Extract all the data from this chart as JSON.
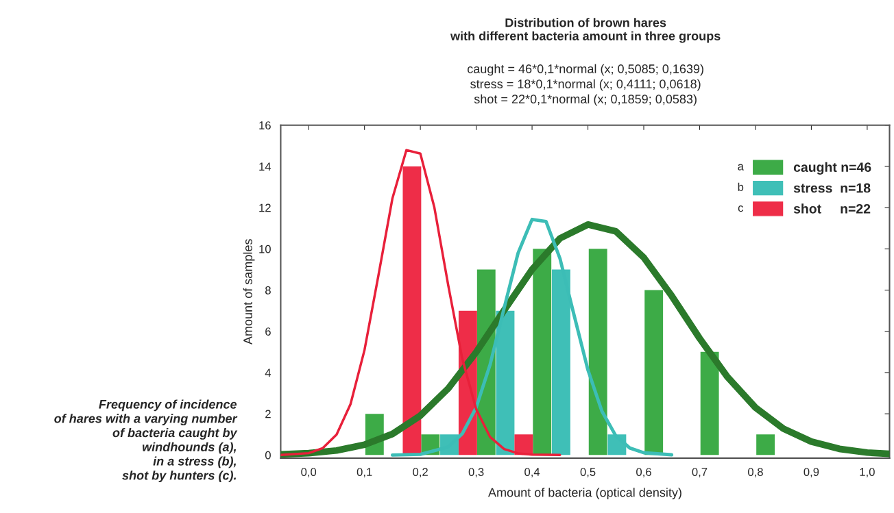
{
  "chart_data": {
    "type": "bar",
    "title": "Distribution of brown hares\nwith different bacteria amount in three groups",
    "subtitle": "caught = 46*0,1*normal (x; 0,5085; 0,1639)\nstress = 18*0,1*normal (x; 0,4111; 0,0618)\nshot = 22*0,1*normal (x; 0,1859; 0,0583)",
    "xlabel": "Amount of bacteria (optical density)",
    "ylabel": "Amount of samples",
    "annotations": [
      "Frequency of incidence\nof hares with a varying number\nof bacteria caught by\nwindhounds (a),\nin a stress (b),\nshot by hunters (c).",
      "a",
      "b",
      "c"
    ],
    "series": [
      {
        "name": "caught n=46",
        "color": "#3dab47",
        "x": [
          0.118,
          0.218,
          0.318,
          0.418,
          0.518,
          0.618,
          0.718,
          0.818
        ],
        "values": [
          2,
          1,
          9,
          10,
          10,
          8,
          5,
          1
        ]
      },
      {
        "name": "stress  n=18",
        "color": "#3fbfb7",
        "x": [
          0.252,
          0.352,
          0.452,
          0.552
        ],
        "values": [
          1,
          7,
          9,
          1
        ]
      },
      {
        "name": "shot     n=22",
        "color": "#ee2d48",
        "x": [
          0.185,
          0.285,
          0.385
        ],
        "values": [
          14,
          7,
          1
        ]
      },
      {
        "type": "line",
        "color": "#2b7a2b",
        "x": [
          -0.05,
          0.0,
          0.05,
          0.1,
          0.15,
          0.2,
          0.25,
          0.3,
          0.35,
          0.4,
          0.45,
          0.5,
          0.55,
          0.6,
          0.65,
          0.7,
          0.75,
          0.8,
          0.85,
          0.9,
          0.95,
          1.0,
          1.04
        ],
        "values": [
          0.03,
          0.09,
          0.22,
          0.5,
          1.02,
          1.91,
          3.23,
          4.99,
          7.02,
          9.0,
          10.51,
          11.18,
          10.85,
          9.58,
          7.72,
          5.66,
          3.78,
          2.3,
          1.28,
          0.65,
          0.3,
          0.12,
          0.06
        ]
      },
      {
        "type": "line",
        "color": "#3cbdb6",
        "x": [
          0.15,
          0.2,
          0.25,
          0.275,
          0.3,
          0.325,
          0.35,
          0.375,
          0.4,
          0.425,
          0.45,
          0.475,
          0.5,
          0.525,
          0.55,
          0.575,
          0.6,
          0.65
        ],
        "values": [
          0,
          0.03,
          0.39,
          1.03,
          2.31,
          4.4,
          7.13,
          9.8,
          11.43,
          11.33,
          9.53,
          6.81,
          4.13,
          2.13,
          0.93,
          0.34,
          0.11,
          0.01
        ]
      },
      {
        "type": "line",
        "color": "#e8203a",
        "x": [
          -0.05,
          0.0,
          0.025,
          0.05,
          0.075,
          0.1,
          0.125,
          0.15,
          0.175,
          0.2,
          0.225,
          0.25,
          0.275,
          0.3,
          0.325,
          0.35,
          0.375,
          0.4,
          0.45
        ],
        "values": [
          0,
          0.09,
          0.33,
          0.99,
          2.47,
          5.09,
          8.72,
          12.45,
          14.79,
          14.62,
          12.02,
          8.22,
          4.68,
          2.22,
          0.87,
          0.29,
          0.08,
          0.02,
          0
        ]
      }
    ],
    "xlim": [
      -0.05,
      1.04
    ],
    "ylim": [
      -0.15,
      16
    ],
    "xticks": [
      {
        "value": 0.0,
        "label": "0,0"
      },
      {
        "value": 0.1,
        "label": "0,1"
      },
      {
        "value": 0.2,
        "label": "0,2"
      },
      {
        "value": 0.3,
        "label": "0,3"
      },
      {
        "value": 0.4,
        "label": "0,4"
      },
      {
        "value": 0.5,
        "label": "0,5"
      },
      {
        "value": 0.6,
        "label": "0,6"
      },
      {
        "value": 0.7,
        "label": "0,7"
      },
      {
        "value": 0.8,
        "label": "0,8"
      },
      {
        "value": 0.9,
        "label": "0,9"
      },
      {
        "value": 1.0,
        "label": "1,0"
      }
    ],
    "yticks": [
      0,
      2,
      4,
      6,
      8,
      10,
      12,
      14,
      16
    ],
    "grid": false,
    "legend": "top right"
  }
}
